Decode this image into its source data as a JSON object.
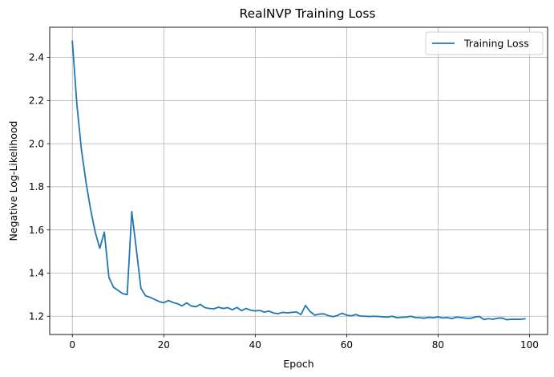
{
  "chart_data": {
    "type": "line",
    "title": "RealNVP Training Loss",
    "xlabel": "Epoch",
    "ylabel": "Negative Log-Likelihood",
    "xlim": [
      -4.95,
      103.95
    ],
    "ylim": [
      1.1155,
      2.5395
    ],
    "xticks": [
      0,
      20,
      40,
      60,
      80,
      100
    ],
    "yticks": [
      1.2,
      1.4,
      1.6,
      1.8,
      2.0,
      2.2,
      2.4
    ],
    "ytick_labels": [
      "1.2",
      "1.4",
      "1.6",
      "1.8",
      "2.0",
      "2.2",
      "2.4"
    ],
    "grid": true,
    "legend_position": "top-right",
    "series": [
      {
        "name": "Training Loss",
        "color": "#1f77b4",
        "x": [
          0,
          1,
          2,
          3,
          4,
          5,
          6,
          7,
          8,
          9,
          10,
          11,
          12,
          13,
          14,
          15,
          16,
          17,
          18,
          19,
          20,
          21,
          22,
          23,
          24,
          25,
          26,
          27,
          28,
          29,
          30,
          31,
          32,
          33,
          34,
          35,
          36,
          37,
          38,
          39,
          40,
          41,
          42,
          43,
          44,
          45,
          46,
          47,
          48,
          49,
          50,
          51,
          52,
          53,
          54,
          55,
          56,
          57,
          58,
          59,
          60,
          61,
          62,
          63,
          64,
          65,
          66,
          67,
          68,
          69,
          70,
          71,
          72,
          73,
          74,
          75,
          76,
          77,
          78,
          79,
          80,
          81,
          82,
          83,
          84,
          85,
          86,
          87,
          88,
          89,
          90,
          91,
          92,
          93,
          94,
          95,
          96,
          97,
          98,
          99
        ],
        "values": [
          2.475,
          2.18,
          1.97,
          1.82,
          1.695,
          1.59,
          1.515,
          1.59,
          1.38,
          1.335,
          1.32,
          1.305,
          1.3,
          1.685,
          1.51,
          1.33,
          1.295,
          1.288,
          1.278,
          1.268,
          1.263,
          1.273,
          1.264,
          1.258,
          1.248,
          1.262,
          1.248,
          1.244,
          1.255,
          1.24,
          1.236,
          1.235,
          1.242,
          1.236,
          1.24,
          1.23,
          1.241,
          1.226,
          1.236,
          1.228,
          1.225,
          1.227,
          1.219,
          1.224,
          1.215,
          1.212,
          1.218,
          1.216,
          1.218,
          1.22,
          1.208,
          1.25,
          1.222,
          1.205,
          1.21,
          1.211,
          1.203,
          1.198,
          1.204,
          1.214,
          1.205,
          1.202,
          1.208,
          1.201,
          1.2,
          1.199,
          1.2,
          1.199,
          1.197,
          1.196,
          1.2,
          1.193,
          1.195,
          1.196,
          1.2,
          1.194,
          1.193,
          1.191,
          1.195,
          1.193,
          1.197,
          1.192,
          1.194,
          1.189,
          1.196,
          1.194,
          1.191,
          1.19,
          1.196,
          1.199,
          1.185,
          1.189,
          1.186,
          1.191,
          1.192,
          1.184,
          1.186,
          1.186,
          1.186,
          1.188
        ]
      }
    ]
  }
}
